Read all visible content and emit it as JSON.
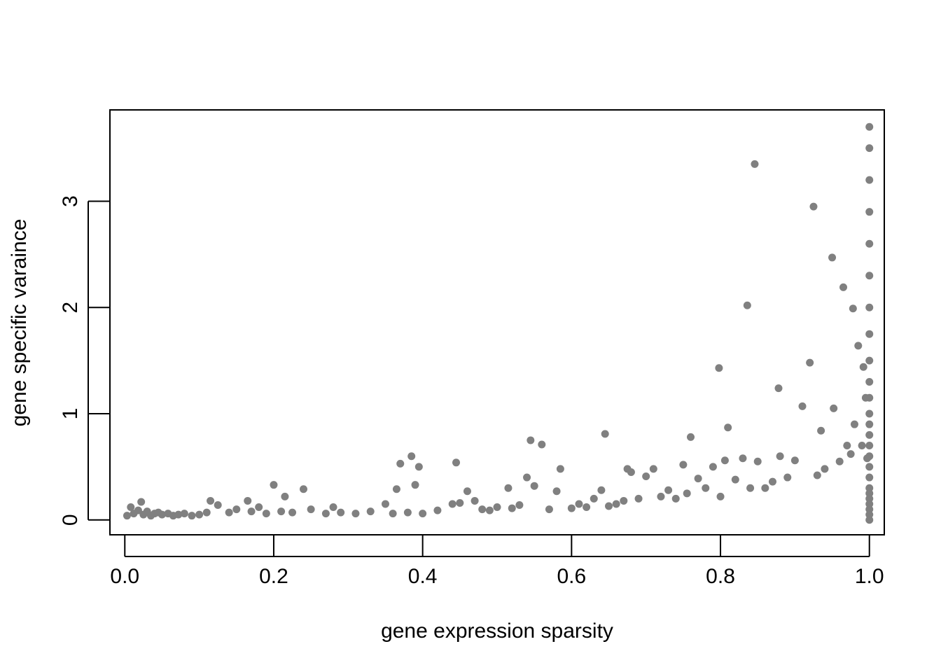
{
  "chart_data": {
    "type": "scatter",
    "title": "",
    "xlabel": "gene expression sparsity",
    "ylabel": "gene specific varaince",
    "xlim": [
      -0.02,
      1.02
    ],
    "ylim": [
      -0.14,
      3.86
    ],
    "xticks": [
      0.0,
      0.2,
      0.4,
      0.6,
      0.8,
      1.0
    ],
    "xtick_labels": [
      "0.0",
      "0.2",
      "0.4",
      "0.6",
      "0.8",
      "1.0"
    ],
    "yticks": [
      0,
      1,
      2,
      3
    ],
    "ytick_labels": [
      "0",
      "1",
      "2",
      "3"
    ],
    "grid": false,
    "legend": "none",
    "point_color": "#808080",
    "series": [
      {
        "x": [
          0.003,
          0.008,
          0.012,
          0.018,
          0.022,
          0.025,
          0.03,
          0.035,
          0.04,
          0.045,
          0.05,
          0.058,
          0.065,
          0.072,
          0.08,
          0.09,
          0.1,
          0.11,
          0.115,
          0.125,
          0.14,
          0.15,
          0.165,
          0.17,
          0.18,
          0.19,
          0.2,
          0.21,
          0.215,
          0.225,
          0.24,
          0.25,
          0.27,
          0.28,
          0.29,
          0.31,
          0.33,
          0.35,
          0.36,
          0.365,
          0.37,
          0.38,
          0.385,
          0.39,
          0.395,
          0.4,
          0.42,
          0.44,
          0.445,
          0.45,
          0.46,
          0.47,
          0.48,
          0.49,
          0.5,
          0.515,
          0.52,
          0.53,
          0.54,
          0.545,
          0.55,
          0.56,
          0.57,
          0.58,
          0.585,
          0.6,
          0.61,
          0.62,
          0.63,
          0.64,
          0.645,
          0.65,
          0.66,
          0.67,
          0.675,
          0.68,
          0.69,
          0.7,
          0.71,
          0.72,
          0.73,
          0.74,
          0.75,
          0.755,
          0.76,
          0.77,
          0.78,
          0.79,
          0.798,
          0.8,
          0.806,
          0.81,
          0.82,
          0.83,
          0.836,
          0.84,
          0.846,
          0.85,
          0.86,
          0.87,
          0.878,
          0.88,
          0.89,
          0.9,
          0.91,
          0.92,
          0.925,
          0.93,
          0.935,
          0.94,
          0.95,
          0.952,
          0.96,
          0.965,
          0.97,
          0.975,
          0.978,
          0.98,
          0.985,
          0.99,
          0.992,
          0.995,
          0.997,
          1.0,
          1.0,
          1.0,
          1.0,
          1.0,
          1.0,
          1.0,
          1.0,
          1.0,
          1.0,
          1.0,
          1.0,
          1.0,
          1.0,
          1.0,
          1.0,
          1.0,
          1.0,
          1.0,
          1.0,
          1.0,
          1.0,
          1.0,
          1.0,
          1.0
        ],
        "y": [
          0.04,
          0.12,
          0.06,
          0.09,
          0.17,
          0.05,
          0.08,
          0.04,
          0.06,
          0.07,
          0.05,
          0.06,
          0.04,
          0.05,
          0.06,
          0.04,
          0.05,
          0.07,
          0.18,
          0.14,
          0.07,
          0.1,
          0.18,
          0.08,
          0.12,
          0.06,
          0.33,
          0.08,
          0.22,
          0.07,
          0.29,
          0.1,
          0.06,
          0.12,
          0.07,
          0.06,
          0.08,
          0.15,
          0.06,
          0.29,
          0.53,
          0.07,
          0.6,
          0.33,
          0.5,
          0.06,
          0.09,
          0.15,
          0.54,
          0.16,
          0.27,
          0.18,
          0.1,
          0.09,
          0.12,
          0.3,
          0.11,
          0.14,
          0.4,
          0.75,
          0.32,
          0.71,
          0.1,
          0.27,
          0.48,
          0.11,
          0.15,
          0.12,
          0.2,
          0.28,
          0.81,
          0.13,
          0.15,
          0.18,
          0.48,
          0.45,
          0.2,
          0.41,
          0.48,
          0.22,
          0.28,
          0.2,
          0.52,
          0.25,
          0.78,
          0.39,
          0.3,
          0.5,
          1.43,
          0.22,
          0.56,
          0.87,
          0.38,
          0.58,
          2.02,
          0.3,
          3.35,
          0.55,
          0.3,
          0.36,
          1.24,
          0.6,
          0.4,
          0.56,
          1.07,
          1.48,
          2.95,
          0.42,
          0.84,
          0.48,
          2.47,
          1.05,
          0.55,
          2.19,
          0.7,
          0.62,
          1.99,
          0.9,
          1.64,
          0.7,
          1.44,
          1.15,
          0.58,
          3.7,
          3.5,
          3.2,
          2.9,
          2.6,
          2.3,
          2.0,
          1.75,
          1.5,
          1.3,
          1.15,
          1.0,
          0.9,
          0.8,
          0.7,
          0.6,
          0.5,
          0.4,
          0.3,
          0.25,
          0.2,
          0.15,
          0.1,
          0.05,
          0.0
        ]
      }
    ]
  }
}
